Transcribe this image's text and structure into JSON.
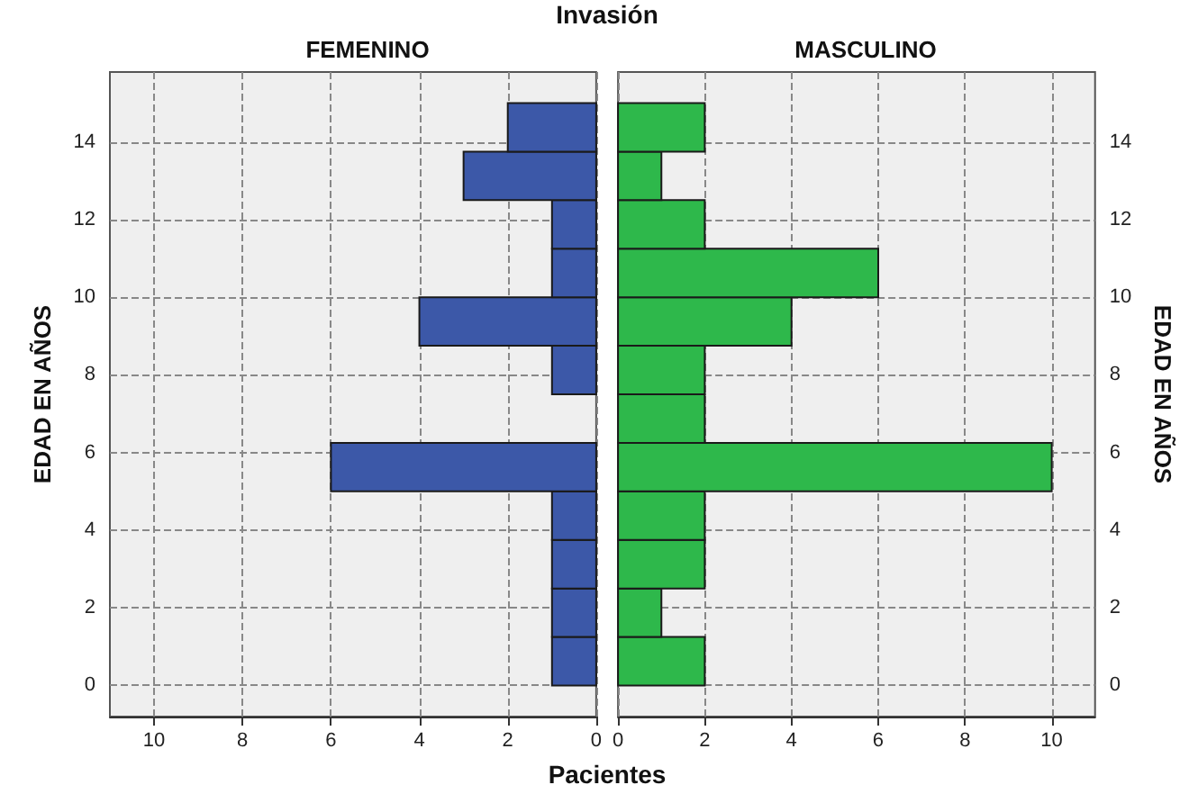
{
  "chart_data": [
    {
      "type": "histogram",
      "orientation": "horizontal",
      "title": "FEMENINO",
      "annotations": [
        "Invasión"
      ],
      "xlabel": "Pacientes",
      "ylabel": "EDAD EN AÑOS",
      "bins": [
        0,
        1.25,
        2.5,
        3.75,
        5,
        6.25,
        7.5,
        8.75,
        10,
        11.25,
        12.5,
        13.75,
        15
      ],
      "values": [
        1,
        1,
        1,
        1,
        6,
        0,
        1,
        4,
        1,
        1,
        3,
        2
      ],
      "color": "#3c58a8",
      "xlim": [
        11,
        0
      ],
      "xticks": [
        0,
        2,
        4,
        6,
        8,
        10
      ],
      "ylim": [
        -0.8,
        15.8
      ],
      "yticks": [
        0,
        2,
        4,
        6,
        8,
        10,
        12,
        14
      ],
      "grid": true
    },
    {
      "type": "histogram",
      "orientation": "horizontal",
      "title": "MASCULINO",
      "ylabel": "EDAD EN AÑOS",
      "bins": [
        0,
        1.25,
        2.5,
        3.75,
        5,
        6.25,
        7.5,
        8.75,
        10,
        11.25,
        12.5,
        13.75,
        15
      ],
      "values": [
        2,
        1,
        2,
        2,
        10,
        2,
        2,
        4,
        6,
        2,
        1,
        2
      ],
      "color": "#2eb84b",
      "xlim": [
        0,
        11
      ],
      "xticks": [
        0,
        2,
        4,
        6,
        8,
        10
      ],
      "ylim": [
        -0.8,
        15.8
      ],
      "yticks": [
        0,
        2,
        4,
        6,
        8,
        10,
        12,
        14
      ],
      "grid": true
    }
  ]
}
